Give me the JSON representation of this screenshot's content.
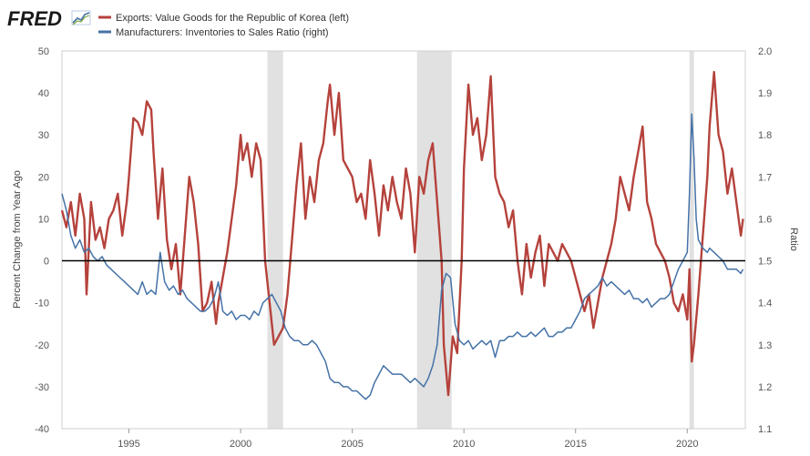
{
  "branding": {
    "logo_text": "FRED",
    "logo_icon": "chart-line-icon"
  },
  "colors": {
    "exports": "#b5423c",
    "ratio": "#4572a7",
    "recession": "#e1e1e1",
    "zero_line": "#000000",
    "plot_bg": "#ffffff",
    "grid": "#e6e6e6"
  },
  "legend": [
    {
      "label": "Exports: Value Goods for the Republic of Korea (left)",
      "color": "#b5423c"
    },
    {
      "label": "Manufacturers: Inventories to Sales Ratio (right)",
      "color": "#4572a7"
    }
  ],
  "chart_data": {
    "type": "line",
    "title": "",
    "xlabel": "",
    "ylabel_left": "Percent Change from Year Ago",
    "ylabel_right": "Ratio",
    "xlim": [
      1992.0,
      2022.6
    ],
    "ylim_left": [
      -40,
      50
    ],
    "ylim_right": [
      1.1,
      2.0
    ],
    "x_ticks": [
      1995,
      2000,
      2005,
      2010,
      2015,
      2020
    ],
    "x_tick_labels": [
      "1995",
      "2000",
      "2005",
      "2010",
      "2015",
      "2020"
    ],
    "y_ticks_left": [
      -40,
      -30,
      -20,
      -10,
      0,
      10,
      20,
      30,
      40,
      50
    ],
    "y_tick_labels_left": [
      "-40",
      "-30",
      "-20",
      "-10",
      "0",
      "10",
      "20",
      "30",
      "40",
      "50"
    ],
    "y_ticks_right": [
      1.1,
      1.2,
      1.3,
      1.4,
      1.5,
      1.6,
      1.7,
      1.8,
      1.9,
      2.0
    ],
    "y_tick_labels_right": [
      "1.1",
      "1.2",
      "1.3",
      "1.4",
      "1.5",
      "1.6",
      "1.7",
      "1.8",
      "1.9",
      "2.0"
    ],
    "recessions": [
      [
        2001.2,
        2001.9
      ],
      [
        2007.9,
        2009.45
      ],
      [
        2020.1,
        2020.3
      ]
    ],
    "reference_line_left": 0,
    "series": [
      {
        "name": "Exports: Value Goods for the Republic of Korea (left)",
        "axis": "left",
        "x": [
          1992.0,
          1992.2,
          1992.4,
          1992.6,
          1992.8,
          1993.0,
          1993.1,
          1993.3,
          1993.5,
          1993.7,
          1993.9,
          1994.1,
          1994.3,
          1994.5,
          1994.7,
          1994.9,
          1995.0,
          1995.2,
          1995.4,
          1995.6,
          1995.8,
          1996.0,
          1996.1,
          1996.3,
          1996.5,
          1996.7,
          1996.9,
          1997.1,
          1997.3,
          1997.5,
          1997.7,
          1997.9,
          1998.1,
          1998.3,
          1998.5,
          1998.7,
          1998.9,
          1999.0,
          1999.2,
          1999.4,
          1999.6,
          1999.8,
          2000.0,
          2000.1,
          2000.3,
          2000.5,
          2000.7,
          2000.9,
          2001.1,
          2001.3,
          2001.5,
          2001.7,
          2001.9,
          2002.1,
          2002.3,
          2002.5,
          2002.7,
          2002.9,
          2003.1,
          2003.3,
          2003.5,
          2003.7,
          2003.9,
          2004.0,
          2004.2,
          2004.4,
          2004.6,
          2004.8,
          2005.0,
          2005.2,
          2005.4,
          2005.6,
          2005.8,
          2006.0,
          2006.2,
          2006.4,
          2006.6,
          2006.8,
          2007.0,
          2007.2,
          2007.4,
          2007.6,
          2007.8,
          2008.0,
          2008.2,
          2008.4,
          2008.6,
          2008.8,
          2009.0,
          2009.1,
          2009.3,
          2009.5,
          2009.7,
          2009.9,
          2010.0,
          2010.2,
          2010.4,
          2010.6,
          2010.8,
          2011.0,
          2011.2,
          2011.4,
          2011.6,
          2011.8,
          2012.0,
          2012.2,
          2012.4,
          2012.6,
          2012.8,
          2013.0,
          2013.2,
          2013.4,
          2013.6,
          2013.8,
          2014.0,
          2014.2,
          2014.4,
          2014.6,
          2014.8,
          2015.0,
          2015.2,
          2015.4,
          2015.6,
          2015.8,
          2016.0,
          2016.2,
          2016.4,
          2016.6,
          2016.8,
          2017.0,
          2017.2,
          2017.4,
          2017.6,
          2017.8,
          2018.0,
          2018.2,
          2018.4,
          2018.6,
          2018.8,
          2019.0,
          2019.2,
          2019.4,
          2019.6,
          2019.8,
          2020.0,
          2020.1,
          2020.2,
          2020.3,
          2020.5,
          2020.7,
          2020.9,
          2021.0,
          2021.2,
          2021.4,
          2021.6,
          2021.8,
          2022.0,
          2022.2,
          2022.4,
          2022.5
        ],
        "values": [
          12,
          8,
          14,
          6,
          16,
          10,
          -8,
          14,
          5,
          8,
          3,
          10,
          12,
          16,
          6,
          14,
          20,
          34,
          33,
          30,
          38,
          36,
          26,
          10,
          22,
          5,
          -2,
          4,
          -8,
          6,
          20,
          14,
          4,
          -12,
          -10,
          -5,
          -15,
          -10,
          -4,
          2,
          10,
          18,
          30,
          24,
          28,
          20,
          28,
          24,
          0,
          -10,
          -20,
          -18,
          -16,
          -8,
          5,
          18,
          28,
          10,
          20,
          14,
          24,
          28,
          38,
          42,
          30,
          40,
          24,
          22,
          20,
          14,
          16,
          10,
          24,
          16,
          6,
          18,
          12,
          20,
          14,
          10,
          22,
          16,
          2,
          20,
          16,
          24,
          28,
          14,
          0,
          -20,
          -32,
          -18,
          -22,
          0,
          22,
          42,
          30,
          34,
          24,
          30,
          44,
          20,
          16,
          14,
          8,
          12,
          0,
          -8,
          4,
          -4,
          2,
          6,
          -6,
          4,
          2,
          0,
          4,
          2,
          0,
          -4,
          -8,
          -12,
          -8,
          -16,
          -10,
          -4,
          0,
          4,
          10,
          20,
          16,
          12,
          20,
          26,
          32,
          14,
          10,
          4,
          2,
          0,
          -4,
          -10,
          -12,
          -8,
          -14,
          -2,
          -24,
          -20,
          -8,
          6,
          20,
          32,
          45,
          30,
          26,
          16,
          22,
          14,
          6,
          10
        ]
      },
      {
        "name": "Manufacturers: Inventories to Sales Ratio (right)",
        "axis": "right",
        "x": [
          1992.0,
          1992.2,
          1992.4,
          1992.6,
          1992.8,
          1993.0,
          1993.2,
          1993.4,
          1993.6,
          1993.8,
          1994.0,
          1994.2,
          1994.4,
          1994.6,
          1994.8,
          1995.0,
          1995.2,
          1995.4,
          1995.6,
          1995.8,
          1996.0,
          1996.2,
          1996.4,
          1996.6,
          1996.8,
          1997.0,
          1997.2,
          1997.4,
          1997.6,
          1997.8,
          1998.0,
          1998.2,
          1998.4,
          1998.6,
          1998.8,
          1999.0,
          1999.2,
          1999.4,
          1999.6,
          1999.8,
          2000.0,
          2000.2,
          2000.4,
          2000.6,
          2000.8,
          2001.0,
          2001.2,
          2001.4,
          2001.6,
          2001.8,
          2002.0,
          2002.2,
          2002.4,
          2002.6,
          2002.8,
          2003.0,
          2003.2,
          2003.4,
          2003.6,
          2003.8,
          2004.0,
          2004.2,
          2004.4,
          2004.6,
          2004.8,
          2005.0,
          2005.2,
          2005.4,
          2005.6,
          2005.8,
          2006.0,
          2006.2,
          2006.4,
          2006.6,
          2006.8,
          2007.0,
          2007.2,
          2007.4,
          2007.6,
          2007.8,
          2008.0,
          2008.2,
          2008.4,
          2008.6,
          2008.8,
          2009.0,
          2009.2,
          2009.4,
          2009.6,
          2009.8,
          2010.0,
          2010.2,
          2010.4,
          2010.6,
          2010.8,
          2011.0,
          2011.2,
          2011.4,
          2011.6,
          2011.8,
          2012.0,
          2012.2,
          2012.4,
          2012.6,
          2012.8,
          2013.0,
          2013.2,
          2013.4,
          2013.6,
          2013.8,
          2014.0,
          2014.2,
          2014.4,
          2014.6,
          2014.8,
          2015.0,
          2015.2,
          2015.4,
          2015.6,
          2015.8,
          2016.0,
          2016.2,
          2016.4,
          2016.6,
          2016.8,
          2017.0,
          2017.2,
          2017.4,
          2017.6,
          2017.8,
          2018.0,
          2018.2,
          2018.4,
          2018.6,
          2018.8,
          2019.0,
          2019.2,
          2019.4,
          2019.6,
          2019.8,
          2020.0,
          2020.1,
          2020.2,
          2020.3,
          2020.4,
          2020.5,
          2020.7,
          2020.9,
          2021.0,
          2021.2,
          2021.4,
          2021.6,
          2021.8,
          2022.0,
          2022.2,
          2022.4,
          2022.5
        ],
        "values": [
          1.66,
          1.62,
          1.56,
          1.53,
          1.55,
          1.52,
          1.53,
          1.51,
          1.5,
          1.51,
          1.49,
          1.48,
          1.47,
          1.46,
          1.45,
          1.44,
          1.43,
          1.42,
          1.45,
          1.42,
          1.43,
          1.42,
          1.52,
          1.45,
          1.43,
          1.44,
          1.42,
          1.43,
          1.41,
          1.4,
          1.39,
          1.38,
          1.38,
          1.39,
          1.41,
          1.45,
          1.38,
          1.37,
          1.38,
          1.36,
          1.37,
          1.37,
          1.36,
          1.38,
          1.37,
          1.4,
          1.41,
          1.42,
          1.4,
          1.38,
          1.34,
          1.32,
          1.31,
          1.31,
          1.3,
          1.3,
          1.31,
          1.3,
          1.28,
          1.26,
          1.22,
          1.21,
          1.21,
          1.2,
          1.2,
          1.19,
          1.19,
          1.18,
          1.17,
          1.18,
          1.21,
          1.23,
          1.25,
          1.24,
          1.23,
          1.23,
          1.23,
          1.22,
          1.21,
          1.22,
          1.21,
          1.2,
          1.22,
          1.25,
          1.3,
          1.43,
          1.47,
          1.46,
          1.35,
          1.31,
          1.3,
          1.31,
          1.29,
          1.3,
          1.31,
          1.3,
          1.31,
          1.27,
          1.31,
          1.31,
          1.32,
          1.32,
          1.33,
          1.32,
          1.32,
          1.33,
          1.32,
          1.33,
          1.34,
          1.32,
          1.32,
          1.33,
          1.33,
          1.34,
          1.34,
          1.36,
          1.38,
          1.41,
          1.42,
          1.43,
          1.44,
          1.46,
          1.44,
          1.45,
          1.44,
          1.43,
          1.42,
          1.43,
          1.41,
          1.41,
          1.4,
          1.41,
          1.39,
          1.4,
          1.41,
          1.41,
          1.42,
          1.45,
          1.48,
          1.5,
          1.52,
          1.66,
          1.85,
          1.75,
          1.6,
          1.55,
          1.53,
          1.52,
          1.53,
          1.52,
          1.51,
          1.5,
          1.48,
          1.48,
          1.48,
          1.47,
          1.48
        ]
      }
    ]
  }
}
